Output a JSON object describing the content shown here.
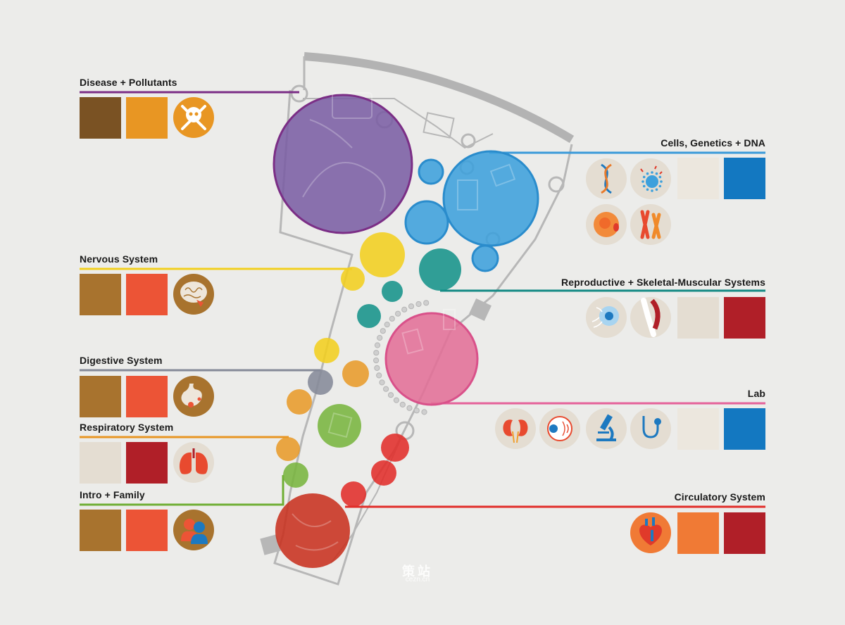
{
  "sections": [
    {
      "id": "disease",
      "label": "Disease + Pollutants",
      "color": "#7b2e86",
      "swatches": [
        "#7a5223",
        "#e89623"
      ],
      "icons": [
        "skull-crossbones-icon"
      ]
    },
    {
      "id": "nervous",
      "label": "Nervous System",
      "color": "#f2cf1f",
      "swatches": [
        "#a8732e",
        "#ec5436"
      ],
      "icons": [
        "brain-icon"
      ]
    },
    {
      "id": "digestive",
      "label": "Digestive System",
      "color": "#858a98",
      "swatches": [
        "#a8732e",
        "#ec5436"
      ],
      "icons": [
        "stomach-icon"
      ]
    },
    {
      "id": "respiratory",
      "label": "Respiratory System",
      "color": "#e89623",
      "swatches": [
        "#e4ddd2",
        "#b01f28"
      ],
      "icons": [
        "lungs-icon"
      ]
    },
    {
      "id": "intro",
      "label": "Intro + Family",
      "color": "#6fae34",
      "swatches": [
        "#a8732e",
        "#ec5436"
      ],
      "icons": [
        "family-icon"
      ]
    },
    {
      "id": "cells",
      "label": "Cells, Genetics + DNA",
      "color": "#3a9ad9",
      "swatches": [
        "#ece7de",
        "#1378c1"
      ],
      "icons": [
        "dna-icon",
        "virus-icon",
        "cell-icon",
        "chromosome-icon"
      ]
    },
    {
      "id": "repro",
      "label": "Reproductive + Skeletal-Muscular Systems",
      "color": "#138a84",
      "swatches": [
        "#e4ddd2",
        "#b01f28"
      ],
      "icons": [
        "egg-cell-icon",
        "knee-joint-icon"
      ]
    },
    {
      "id": "lab",
      "label": "Lab",
      "color": "#e5629a",
      "swatches": [
        "#ece7de",
        "#1378c1"
      ],
      "icons": [
        "kidneys-icon",
        "eye-icon",
        "microscope-icon",
        "stethoscope-icon"
      ]
    },
    {
      "id": "circulatory",
      "label": "Circulatory System",
      "color": "#e12e2a",
      "swatches": [
        "#f07a35",
        "#b01f28"
      ],
      "icons": [
        "heart-icon"
      ]
    }
  ],
  "watermark": {
    "title": "策站",
    "sub": "cezn.cn"
  }
}
